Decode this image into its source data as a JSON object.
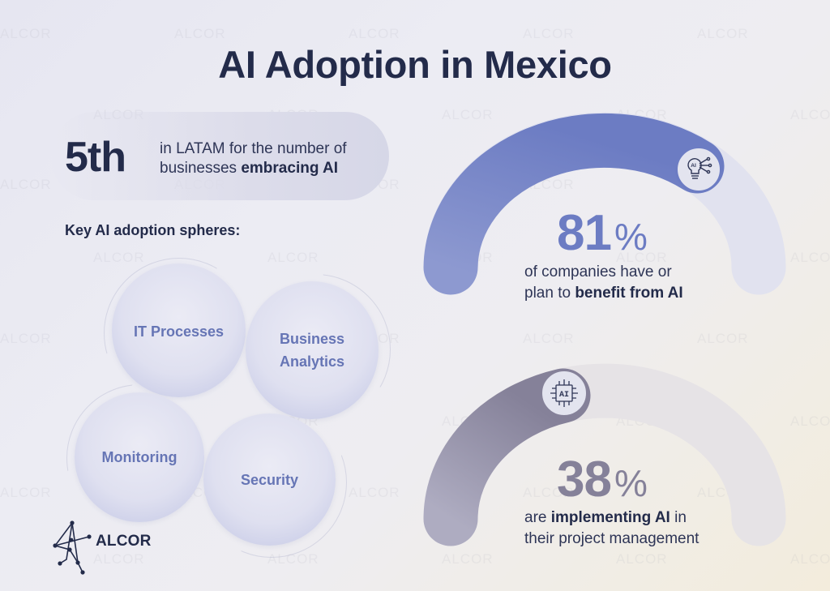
{
  "title": "AI Adoption in Mexico",
  "watermark": "ALCOR",
  "ranking": {
    "value": "5th",
    "text_plain": "in LATAM for the number of businesses ",
    "line1": "in LATAM for the number of",
    "line2_plain": "businesses ",
    "line2_bold": "embracing AI"
  },
  "spheres": {
    "heading": "Key AI adoption spheres:",
    "items": [
      {
        "label": "IT Processes"
      },
      {
        "label": "Business Analytics"
      },
      {
        "label": "Monitoring"
      },
      {
        "label": "Security"
      }
    ]
  },
  "brand": {
    "name": "ALCOR"
  },
  "stats": [
    {
      "value": "81",
      "unit": "%",
      "line1": "of companies have or",
      "line2_plain": "plan to ",
      "line2_bold": "benefit from AI",
      "icon": "ai-lightbulb-icon",
      "color": "#6f7fc4"
    },
    {
      "value": "38",
      "unit": "%",
      "line1_plain": "are ",
      "line1_bold": "implementing AI",
      "line1_tail": " in",
      "line2": "their project management",
      "icon": "ai-chip-icon",
      "color": "#8a87a3"
    }
  ],
  "chart_data": {
    "type": "gauge",
    "title": "AI Adoption in Mexico",
    "series": [
      {
        "name": "Companies that have or plan to benefit from AI",
        "value": 81,
        "unit": "%"
      },
      {
        "name": "Companies implementing AI in project management",
        "value": 38,
        "unit": "%"
      }
    ],
    "annotations": [
      "5th in LATAM for the number of businesses embracing AI",
      "Key AI adoption spheres: IT Processes, Business Analytics, Monitoring, Security"
    ],
    "ylim": [
      0,
      100
    ]
  }
}
